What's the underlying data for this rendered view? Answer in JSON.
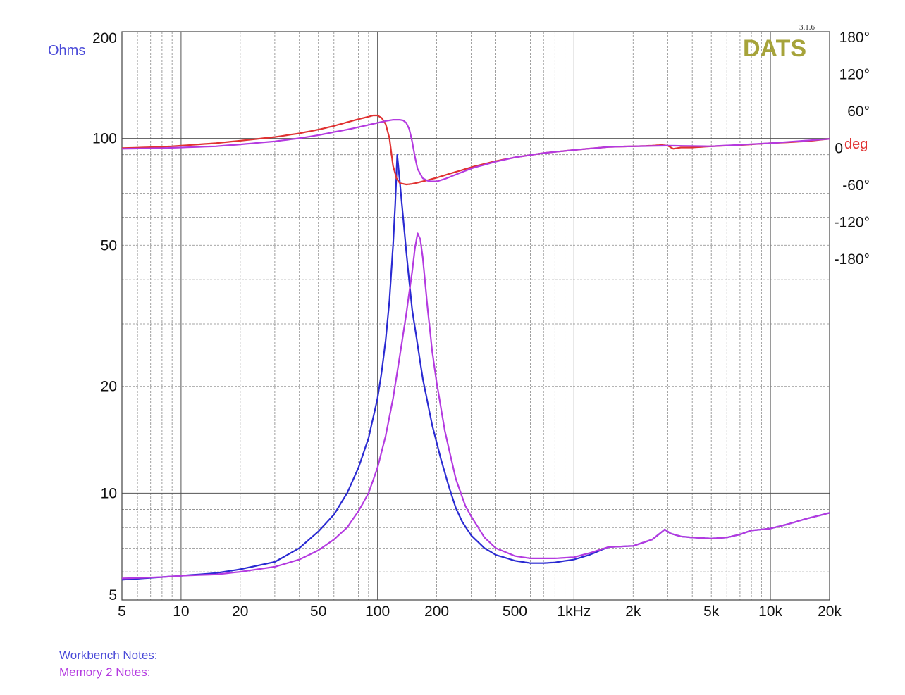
{
  "chart_data": {
    "type": "line",
    "x_scale": "log",
    "y_scale": "log",
    "xlim": [
      5,
      20000
    ],
    "ylim": [
      5,
      200
    ],
    "y2lim": [
      -180,
      180
    ],
    "grid": true,
    "left_axis_label": "Ohms",
    "right_axis_label": "deg",
    "x_ticks": [
      {
        "value": 5,
        "label": "5"
      },
      {
        "value": 10,
        "label": "10"
      },
      {
        "value": 20,
        "label": "20"
      },
      {
        "value": 50,
        "label": "50"
      },
      {
        "value": 100,
        "label": "100"
      },
      {
        "value": 200,
        "label": "200"
      },
      {
        "value": 500,
        "label": "500"
      },
      {
        "value": 1000,
        "label": "1kHz"
      },
      {
        "value": 2000,
        "label": "2k"
      },
      {
        "value": 5000,
        "label": "5k"
      },
      {
        "value": 10000,
        "label": "10k"
      },
      {
        "value": 20000,
        "label": "20k"
      }
    ],
    "y_ticks": [
      {
        "value": 200,
        "label": "200"
      },
      {
        "value": 100,
        "label": "100"
      },
      {
        "value": 50,
        "label": "50"
      },
      {
        "value": 20,
        "label": "20"
      },
      {
        "value": 10,
        "label": "10"
      },
      {
        "value": 5,
        "label": "5"
      }
    ],
    "y2_ticks": [
      {
        "value": 180,
        "label": "180°"
      },
      {
        "value": 120,
        "label": "120°"
      },
      {
        "value": 60,
        "label": "60°"
      },
      {
        "value": 0,
        "label": "0"
      },
      {
        "value": -60,
        "label": "-60°"
      },
      {
        "value": -120,
        "label": "-120°"
      },
      {
        "value": -180,
        "label": "-180°"
      }
    ],
    "series": [
      {
        "name": "Workbench",
        "axis": "left",
        "color": "#2a2ad2",
        "x": [
          5,
          8,
          10,
          15,
          20,
          30,
          40,
          50,
          60,
          70,
          80,
          90,
          100,
          105,
          110,
          115,
          120,
          123,
          126,
          130,
          140,
          150,
          170,
          190,
          210,
          230,
          250,
          270,
          300,
          350,
          400,
          500,
          600,
          700,
          800,
          1000,
          1200,
          1500,
          2000,
          2500,
          2900,
          3100,
          3500,
          4000,
          5000,
          6000,
          7000,
          8000,
          9000,
          10000,
          12000,
          15000,
          20000
        ],
        "y": [
          5.7,
          5.8,
          5.85,
          5.95,
          6.1,
          6.4,
          7.0,
          7.8,
          8.7,
          10.0,
          11.8,
          14.3,
          18.5,
          22.0,
          27.0,
          35.0,
          50.0,
          65.0,
          90.0,
          75.0,
          48.0,
          33.0,
          21.0,
          15.5,
          12.5,
          10.5,
          9.1,
          8.3,
          7.6,
          7.0,
          6.7,
          6.45,
          6.35,
          6.35,
          6.38,
          6.5,
          6.7,
          7.05,
          7.1,
          7.4,
          7.9,
          7.7,
          7.55,
          7.5,
          7.45,
          7.5,
          7.65,
          7.85,
          7.9,
          7.95,
          8.15,
          8.45,
          8.8
        ]
      },
      {
        "name": "Memory 2",
        "axis": "left",
        "color": "#b43ae0",
        "x": [
          5,
          8,
          10,
          15,
          20,
          30,
          40,
          50,
          60,
          70,
          80,
          90,
          100,
          110,
          120,
          130,
          140,
          150,
          155,
          160,
          165,
          170,
          180,
          190,
          200,
          220,
          250,
          280,
          300,
          350,
          400,
          500,
          600,
          700,
          800,
          1000,
          1200,
          1500,
          2000,
          2500,
          2900,
          3100,
          3500,
          4000,
          5000,
          6000,
          7000,
          8000,
          9000,
          10000,
          12000,
          15000,
          20000
        ],
        "y": [
          5.75,
          5.8,
          5.85,
          5.9,
          6.0,
          6.2,
          6.5,
          6.9,
          7.4,
          8.0,
          8.9,
          10.0,
          11.8,
          14.5,
          18.5,
          24.5,
          32.0,
          42.0,
          49.0,
          54.0,
          52.0,
          46.0,
          33.0,
          25.0,
          20.5,
          15.0,
          11.0,
          9.2,
          8.6,
          7.5,
          7.0,
          6.65,
          6.55,
          6.55,
          6.55,
          6.6,
          6.78,
          7.05,
          7.1,
          7.4,
          7.9,
          7.7,
          7.55,
          7.5,
          7.45,
          7.5,
          7.65,
          7.85,
          7.9,
          7.95,
          8.15,
          8.45,
          8.8
        ]
      },
      {
        "name": "Workbench phase",
        "axis": "right",
        "color": "#e03232",
        "x": [
          5,
          8,
          10,
          15,
          20,
          30,
          40,
          50,
          60,
          70,
          80,
          90,
          95,
          100,
          105,
          110,
          115,
          120,
          125,
          130,
          140,
          150,
          160,
          180,
          200,
          230,
          260,
          300,
          400,
          500,
          700,
          1000,
          1500,
          2000,
          2500,
          2800,
          3000,
          3200,
          3500,
          4000,
          5000,
          7000,
          10000,
          15000,
          20000
        ],
        "y": [
          -1,
          1,
          3,
          7,
          11,
          17,
          23,
          29,
          35,
          41,
          46,
          50,
          52,
          52,
          48,
          38,
          15,
          -30,
          -50,
          -58,
          -60,
          -59,
          -57,
          -53,
          -49,
          -43,
          -38,
          -32,
          -22,
          -16,
          -9,
          -4,
          1,
          2,
          3,
          4,
          3,
          -2,
          0,
          0,
          2,
          4,
          7,
          10,
          14
        ]
      },
      {
        "name": "Memory 2 phase",
        "axis": "right",
        "color": "#b43ae0",
        "x": [
          5,
          8,
          10,
          15,
          20,
          30,
          40,
          50,
          60,
          70,
          80,
          100,
          110,
          120,
          130,
          135,
          140,
          145,
          150,
          155,
          160,
          170,
          180,
          190,
          200,
          220,
          250,
          300,
          400,
          500,
          700,
          1000,
          1500,
          2000,
          3000,
          5000,
          10000,
          20000
        ],
        "y": [
          -2,
          -1,
          0,
          2,
          5,
          10,
          15,
          20,
          25,
          29,
          33,
          40,
          43,
          45,
          45,
          44,
          40,
          30,
          10,
          -15,
          -35,
          -50,
          -54,
          -55,
          -55,
          -51,
          -44,
          -34,
          -23,
          -16,
          -9,
          -4,
          1,
          2,
          3,
          2,
          7,
          14
        ]
      }
    ]
  },
  "labels": {
    "ohms": "Ohms",
    "deg": "deg",
    "logo": "DATS",
    "version": "3.1.6",
    "workbench_notes": "Workbench Notes:",
    "memory_notes": "Memory 2 Notes:"
  },
  "colors": {
    "workbench": "#2a2ad2",
    "memory": "#b43ae0",
    "phase": "#e03232",
    "logo": "#a6a33a",
    "ohms_label": "#4a4ad8"
  }
}
